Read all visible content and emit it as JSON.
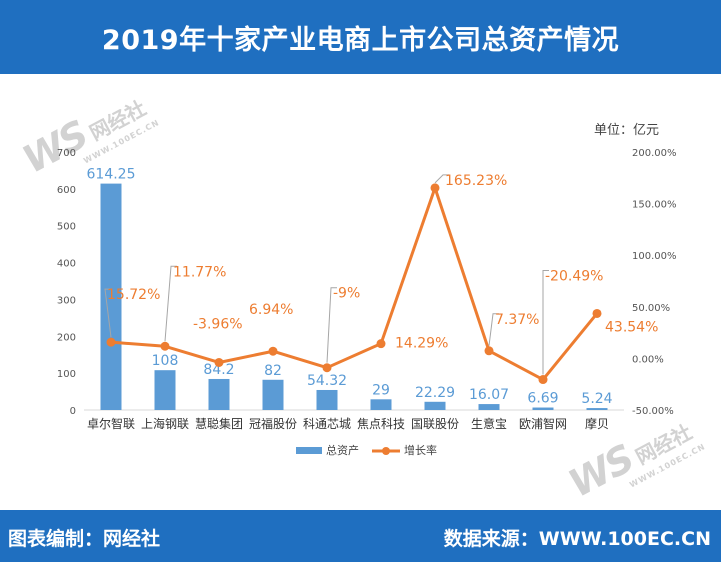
{
  "header": {
    "title": "2019年十家产业电商上市公司总资产情况"
  },
  "unit_label": "单位：亿元",
  "watermark": {
    "logo": "WS",
    "name": "网经社",
    "url": "WWW.100EC.CN"
  },
  "footer": {
    "left": "图表编制：网经社",
    "right": "数据来源：WWW.100EC.CN"
  },
  "colors": {
    "header_bg": "#1f6fc0",
    "bar": "#5b9bd5",
    "line": "#ed7d31",
    "bar_label": "#5b9bd5",
    "line_label": "#ed7d31"
  },
  "chart_data": {
    "type": "bar",
    "categories": [
      "卓尔智联",
      "上海钢联",
      "慧聪集团",
      "冠福股份",
      "科通芯城",
      "焦点科技",
      "国联股份",
      "生意宝",
      "欧浦智网",
      "摩贝"
    ],
    "series": [
      {
        "name": "总资产",
        "type": "bar",
        "axis": "left",
        "values": [
          614.25,
          108,
          84.2,
          82,
          54.32,
          29,
          22.29,
          16.07,
          6.69,
          5.24
        ],
        "labels": [
          "614.25",
          "108",
          "84.2",
          "82",
          "54.32",
          "29",
          "22.29",
          "16.07",
          "6.69",
          "5.24"
        ]
      },
      {
        "name": "增长率",
        "type": "line",
        "axis": "right",
        "values": [
          15.72,
          11.77,
          -3.96,
          6.94,
          -9,
          14.29,
          165.23,
          7.37,
          -20.49,
          43.54
        ],
        "labels": [
          "15.72%",
          "11.77%",
          "-3.96%",
          "6.94%",
          "-9%",
          "14.29%",
          "165.23%",
          "7.37%",
          "-20.49%",
          "43.54%"
        ]
      }
    ],
    "y_left": {
      "min": 0,
      "max": 700,
      "ticks": [
        "0",
        "100",
        "200",
        "300",
        "400",
        "500",
        "600",
        "700"
      ]
    },
    "y_right": {
      "min": -50,
      "max": 200,
      "ticks": [
        "-50.00%",
        "0.00%",
        "50.00%",
        "100.00%",
        "150.00%",
        "200.00%"
      ]
    },
    "grid": false,
    "legend_position": "bottom"
  }
}
